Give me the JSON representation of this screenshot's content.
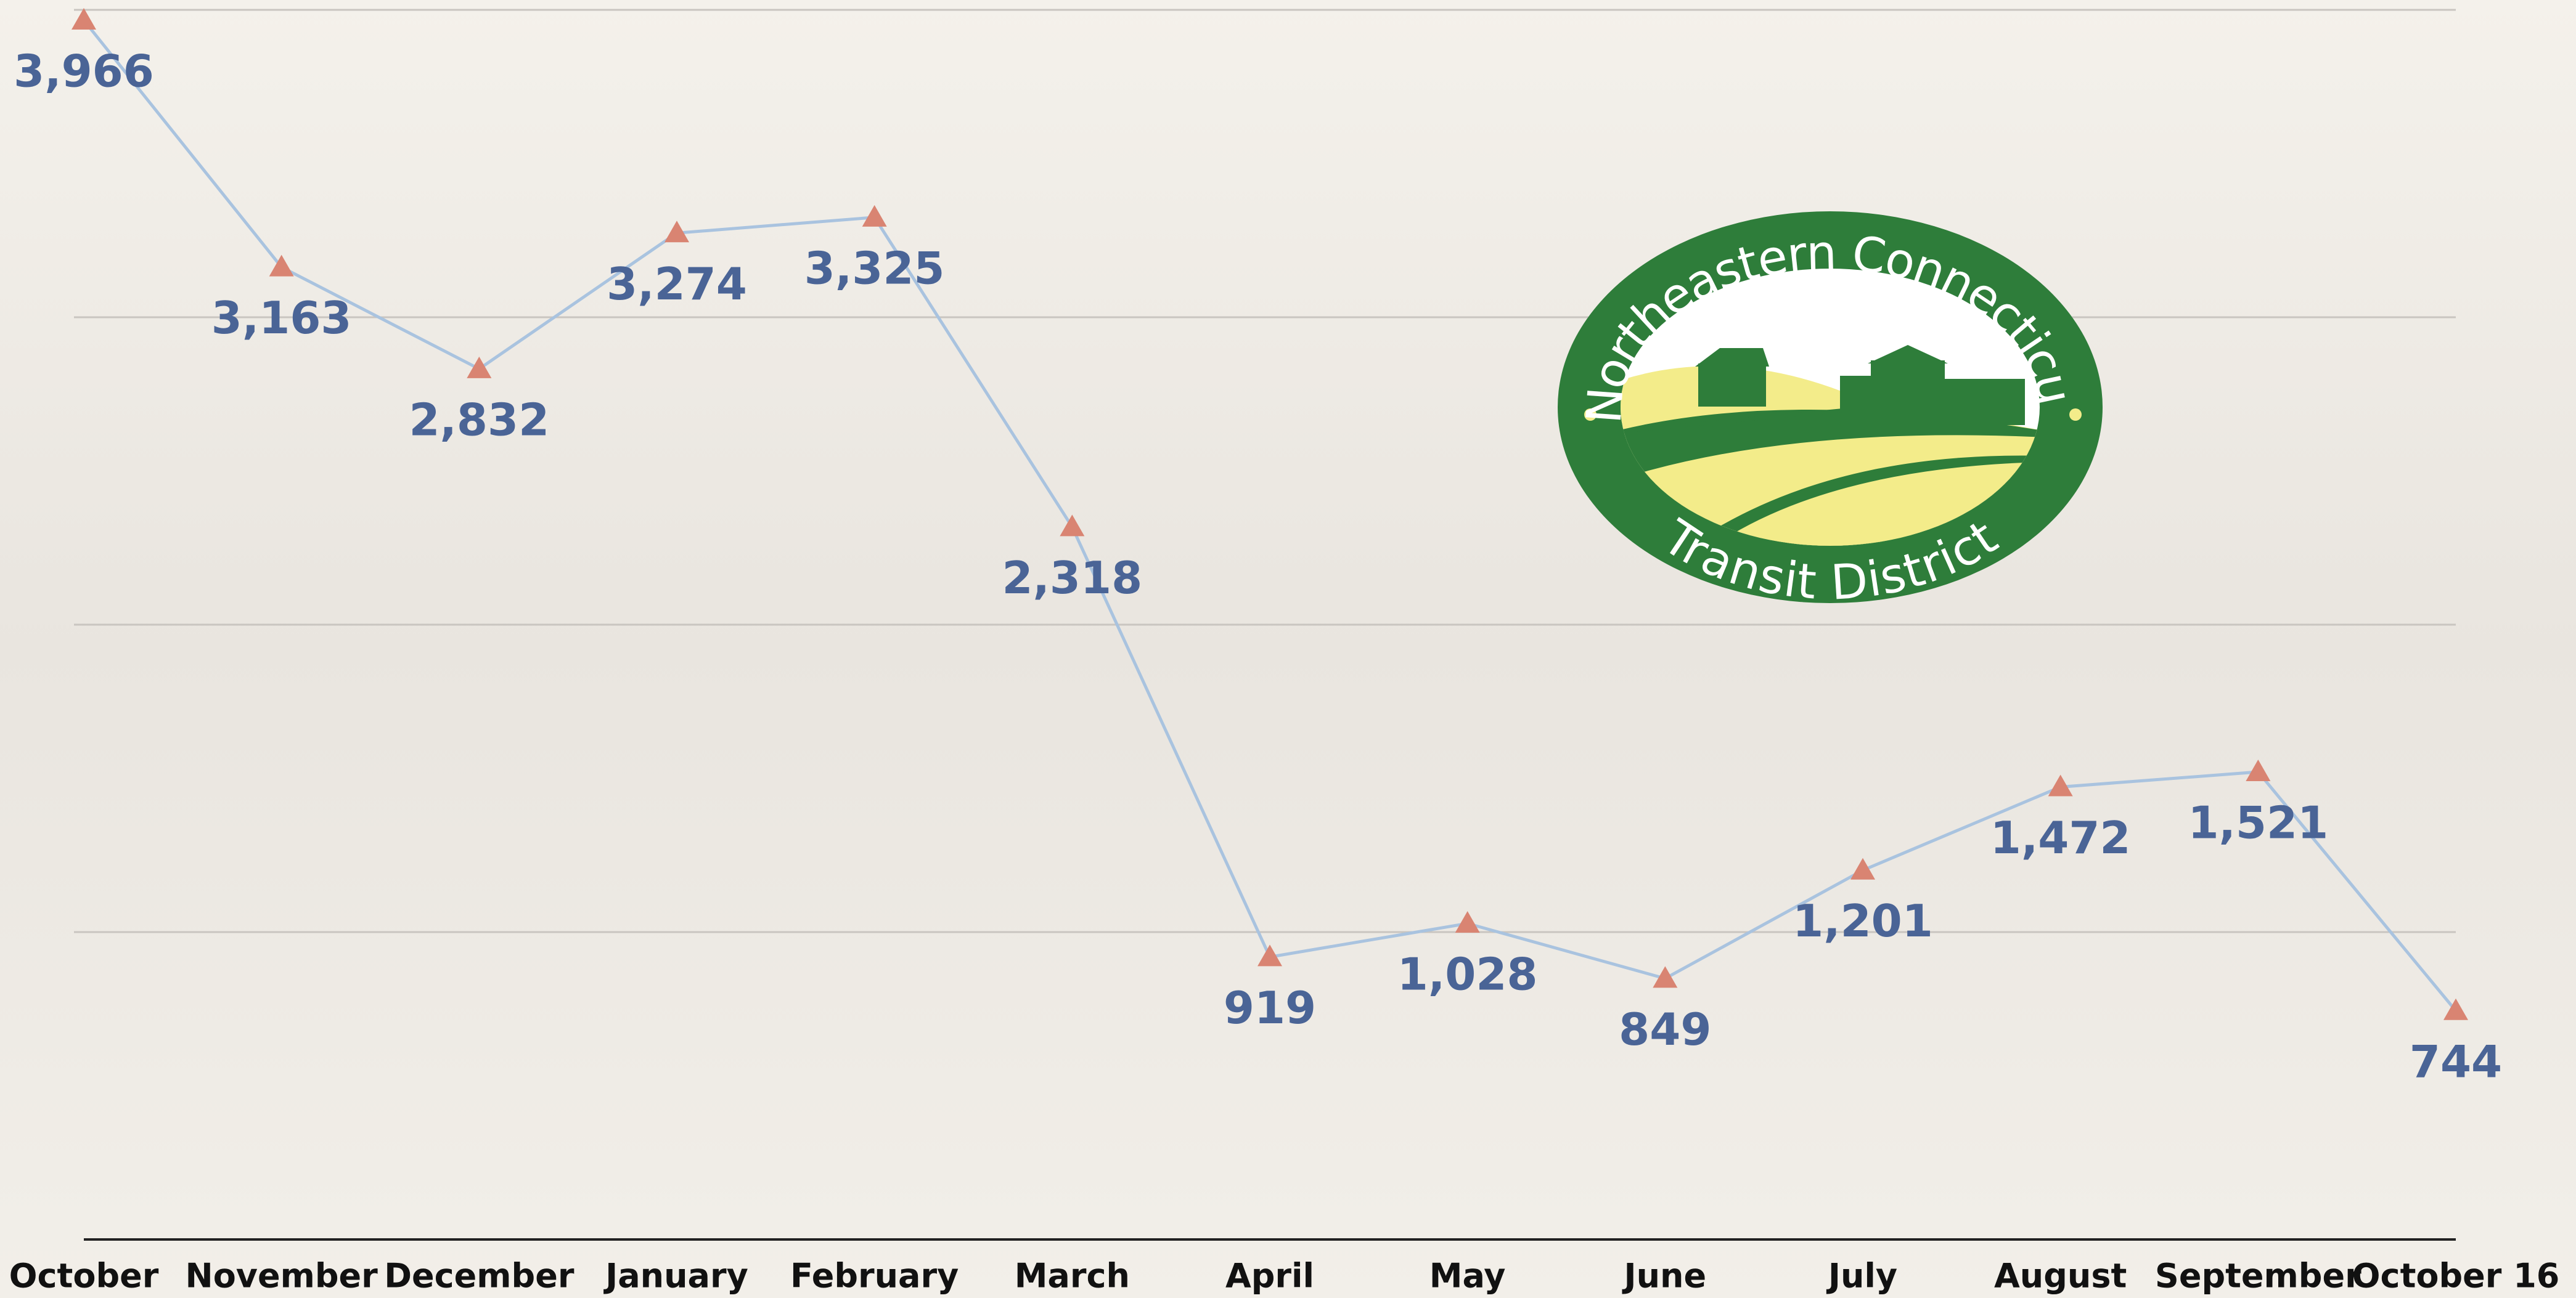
{
  "chart_data": {
    "type": "line",
    "categories": [
      "October",
      "November",
      "December",
      "January",
      "February",
      "March",
      "April",
      "May",
      "June",
      "July",
      "August",
      "September",
      "October 16"
    ],
    "values": [
      3966,
      3163,
      2832,
      3274,
      3325,
      2318,
      919,
      1028,
      849,
      1201,
      1472,
      1521,
      744
    ],
    "value_labels": [
      "3,966",
      "3,163",
      "2,832",
      "3,274",
      "3,325",
      "2,318",
      "919",
      "1,028",
      "849",
      "1,201",
      "1,472",
      "1,521",
      "744"
    ],
    "color": "#a9c3df",
    "marker_color": "#d98472",
    "label_color": "#4a6496",
    "ylim": [
      0,
      4000
    ],
    "yticks": [
      0,
      1000,
      2000,
      3000,
      4000
    ],
    "grid": true
  },
  "logo": {
    "top_text": "Northeastern Connecticut",
    "bottom_text": "Transit District"
  }
}
